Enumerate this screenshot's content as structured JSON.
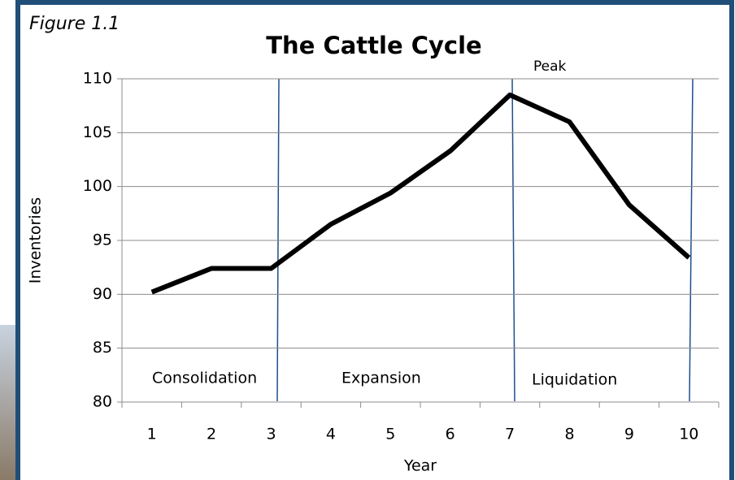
{
  "chart_data": {
    "type": "line",
    "figure_label": "Figure 1.1",
    "title": "The Cattle Cycle",
    "x_label": "Year",
    "y_label": "Inventories",
    "categories": [
      "1",
      "2",
      "3",
      "4",
      "5",
      "6",
      "7",
      "8",
      "9",
      "10"
    ],
    "values": [
      90.2,
      92.4,
      92.4,
      96.5,
      99.4,
      103.3,
      108.5,
      106,
      98.3,
      93.4
    ],
    "color": "#000000",
    "ylim": [
      80,
      110
    ],
    "yticks": [
      80,
      85,
      90,
      95,
      100,
      105,
      110
    ],
    "grid": true,
    "annotations": {
      "consolidation": "Consolidation",
      "expansion": "Expansion",
      "liquidation": "Liquidation",
      "peak": "Peak"
    }
  }
}
